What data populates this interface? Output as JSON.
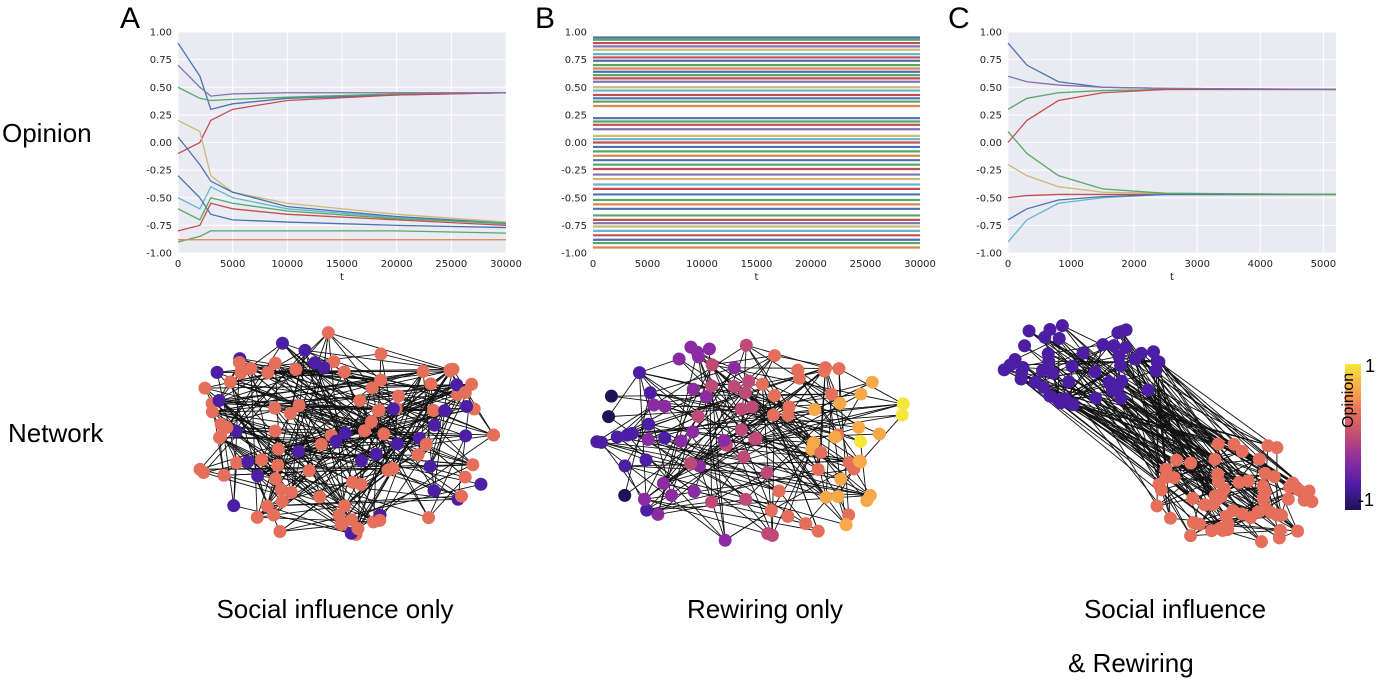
{
  "labels": {
    "row_opinion": "Opinion",
    "row_network": "Network",
    "caption_a": "Social influence only",
    "caption_b": "Rewiring only",
    "caption_c_line1": "Social influence",
    "caption_c_line2": "& Rewiring"
  },
  "panels": [
    {
      "letter": "A"
    },
    {
      "letter": "B"
    },
    {
      "letter": "C"
    }
  ],
  "colorbar": {
    "title": "Opinion",
    "max_label": "1",
    "min_label": "-1",
    "colors": [
      "#f6e53a",
      "#f7a94a",
      "#e66f5c",
      "#bf4a78",
      "#8a2ba2",
      "#4b1ea3",
      "#1e1355"
    ]
  },
  "chart_data": [
    {
      "type": "line",
      "title": "",
      "xlabel": "t",
      "ylabel": "",
      "xlim": [
        0,
        30000
      ],
      "ylim": [
        -1.0,
        1.0
      ],
      "xticks": [
        "0",
        "5000",
        "10000",
        "15000",
        "20000",
        "25000",
        "30000"
      ],
      "yticks": [
        "1.00",
        "0.75",
        "0.50",
        "0.25",
        "0.00",
        "-0.25",
        "-0.50",
        "-0.75",
        "-1.00"
      ],
      "grid": true,
      "description_series": "many agent opinion trajectories converging to two clusters",
      "series": [
        {
          "values_at": [
            0,
            2000,
            3000,
            5000,
            10000,
            20000,
            30000
          ],
          "values": [
            0.9,
            0.6,
            0.3,
            0.35,
            0.4,
            0.43,
            0.45
          ]
        },
        {
          "values_at": [
            0,
            2000,
            3000,
            5000,
            10000,
            20000,
            30000
          ],
          "values": [
            0.5,
            0.4,
            0.38,
            0.39,
            0.41,
            0.44,
            0.45
          ]
        },
        {
          "values_at": [
            0,
            2000,
            3000,
            5000,
            10000,
            20000,
            30000
          ],
          "values": [
            -0.1,
            0.0,
            0.2,
            0.3,
            0.38,
            0.43,
            0.45
          ]
        },
        {
          "values_at": [
            0,
            2000,
            3000,
            5000,
            10000,
            20000,
            30000
          ],
          "values": [
            0.7,
            0.5,
            0.42,
            0.44,
            0.45,
            0.45,
            0.45
          ]
        },
        {
          "values_at": [
            0,
            2000,
            3000,
            5000,
            10000,
            20000,
            30000
          ],
          "values": [
            0.2,
            0.1,
            -0.3,
            -0.45,
            -0.55,
            -0.65,
            -0.72
          ]
        },
        {
          "values_at": [
            0,
            2000,
            3000,
            5000,
            10000,
            20000,
            30000
          ],
          "values": [
            -0.5,
            -0.6,
            -0.4,
            -0.5,
            -0.6,
            -0.68,
            -0.74
          ]
        },
        {
          "values_at": [
            0,
            2000,
            3000,
            5000,
            10000,
            20000,
            30000
          ],
          "values": [
            -0.8,
            -0.75,
            -0.55,
            -0.6,
            -0.65,
            -0.7,
            -0.75
          ]
        },
        {
          "values_at": [
            0,
            2000,
            3000,
            5000,
            10000,
            20000,
            30000
          ],
          "values": [
            -0.3,
            -0.5,
            -0.65,
            -0.7,
            -0.72,
            -0.75,
            -0.77
          ]
        },
        {
          "values_at": [
            0,
            2000,
            3000,
            5000,
            10000,
            20000,
            30000
          ],
          "values": [
            -0.9,
            -0.85,
            -0.8,
            -0.8,
            -0.8,
            -0.8,
            -0.82
          ]
        },
        {
          "values_at": [
            0,
            2000,
            3000,
            5000,
            10000,
            20000,
            30000
          ],
          "values": [
            -0.88,
            -0.88,
            -0.88,
            -0.88,
            -0.88,
            -0.88,
            -0.88
          ]
        },
        {
          "values_at": [
            0,
            2000,
            3000,
            5000,
            10000,
            20000,
            30000
          ],
          "values": [
            0.05,
            -0.2,
            -0.35,
            -0.45,
            -0.58,
            -0.67,
            -0.73
          ]
        },
        {
          "values_at": [
            0,
            2000,
            3000,
            5000,
            10000,
            20000,
            30000
          ],
          "values": [
            -0.6,
            -0.7,
            -0.5,
            -0.55,
            -0.62,
            -0.69,
            -0.73
          ]
        }
      ]
    },
    {
      "type": "line",
      "title": "",
      "xlabel": "t",
      "ylabel": "",
      "xlim": [
        0,
        30000
      ],
      "ylim": [
        -1.0,
        1.0
      ],
      "xticks": [
        "0",
        "5000",
        "10000",
        "15000",
        "20000",
        "25000",
        "30000"
      ],
      "yticks": [
        "1.00",
        "0.75",
        "0.50",
        "0.25",
        "0.00",
        "-0.25",
        "-0.50",
        "-0.75",
        "-1.00"
      ],
      "grid": false,
      "description_series": "constant opinions (horizontal lines)",
      "constant_levels": [
        0.95,
        0.93,
        0.9,
        0.87,
        0.84,
        0.8,
        0.77,
        0.74,
        0.7,
        0.67,
        0.64,
        0.61,
        0.58,
        0.55,
        0.5,
        0.47,
        0.43,
        0.4,
        0.37,
        0.33,
        0.22,
        0.19,
        0.16,
        0.12,
        0.06,
        0.03,
        0.0,
        -0.04,
        -0.08,
        -0.12,
        -0.16,
        -0.2,
        -0.24,
        -0.29,
        -0.33,
        -0.38,
        -0.42,
        -0.47,
        -0.52,
        -0.56,
        -0.6,
        -0.66,
        -0.7,
        -0.73,
        -0.76,
        -0.8,
        -0.84,
        -0.88,
        -0.91,
        -0.95
      ]
    },
    {
      "type": "line",
      "title": "",
      "xlabel": "t",
      "ylabel": "",
      "xlim": [
        0,
        5200
      ],
      "ylim": [
        -1.0,
        1.0
      ],
      "xticks": [
        "0",
        "1000",
        "2000",
        "3000",
        "4000",
        "5000"
      ],
      "yticks": [
        "1.00",
        "0.75",
        "0.50",
        "0.25",
        "0.00",
        "-0.25",
        "-0.50",
        "-0.75",
        "-1.00"
      ],
      "grid": true,
      "description_series": "opinion trajectories converging to two clusters",
      "series": [
        {
          "values_at": [
            0,
            300,
            800,
            1500,
            2500,
            5200
          ],
          "values": [
            0.9,
            0.7,
            0.55,
            0.5,
            0.49,
            0.48
          ]
        },
        {
          "values_at": [
            0,
            300,
            800,
            1500,
            2500,
            5200
          ],
          "values": [
            0.3,
            0.4,
            0.45,
            0.47,
            0.48,
            0.48
          ]
        },
        {
          "values_at": [
            0,
            300,
            800,
            1500,
            2500,
            5200
          ],
          "values": [
            0.0,
            0.2,
            0.38,
            0.45,
            0.48,
            0.48
          ]
        },
        {
          "values_at": [
            0,
            300,
            800,
            1500,
            2500,
            5200
          ],
          "values": [
            0.6,
            0.55,
            0.52,
            0.5,
            0.49,
            0.48
          ]
        },
        {
          "values_at": [
            0,
            300,
            800,
            1500,
            2500,
            5200
          ],
          "values": [
            -0.2,
            -0.3,
            -0.4,
            -0.45,
            -0.46,
            -0.47
          ]
        },
        {
          "values_at": [
            0,
            300,
            800,
            1500,
            2500,
            5200
          ],
          "values": [
            -0.9,
            -0.7,
            -0.55,
            -0.5,
            -0.47,
            -0.47
          ]
        },
        {
          "values_at": [
            0,
            300,
            800,
            1500,
            2500,
            5200
          ],
          "values": [
            -0.5,
            -0.48,
            -0.47,
            -0.47,
            -0.47,
            -0.47
          ]
        },
        {
          "values_at": [
            0,
            300,
            800,
            1500,
            2500,
            5200
          ],
          "values": [
            -0.7,
            -0.6,
            -0.52,
            -0.49,
            -0.47,
            -0.47
          ]
        },
        {
          "values_at": [
            0,
            300,
            800,
            1500,
            2500,
            5200
          ],
          "values": [
            0.1,
            -0.1,
            -0.3,
            -0.42,
            -0.46,
            -0.47
          ]
        }
      ]
    }
  ]
}
